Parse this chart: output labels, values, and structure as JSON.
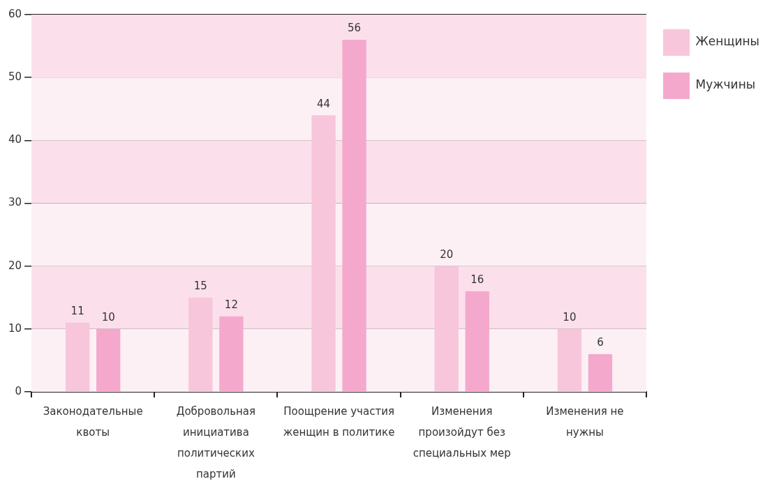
{
  "chart_data": {
    "type": "bar",
    "categories": [
      "Законодательные квоты",
      "Добровольная инициатива политических партий",
      "Поощрение участия женщин в политике",
      "Изменения произойдут без специальных мер",
      "Изменения не нужны"
    ],
    "series": [
      {
        "name": "Женщины",
        "color": "#f7c6da",
        "values": [
          11,
          15,
          44,
          20,
          10
        ]
      },
      {
        "name": "Мужчины",
        "color": "#f4a9cc",
        "values": [
          10,
          12,
          56,
          16,
          6
        ]
      }
    ],
    "ylim": [
      0,
      60
    ],
    "yticks": [
      0,
      10,
      20,
      30,
      40,
      50,
      60
    ],
    "grid": "y",
    "legend": "top right",
    "data_labels": true
  }
}
